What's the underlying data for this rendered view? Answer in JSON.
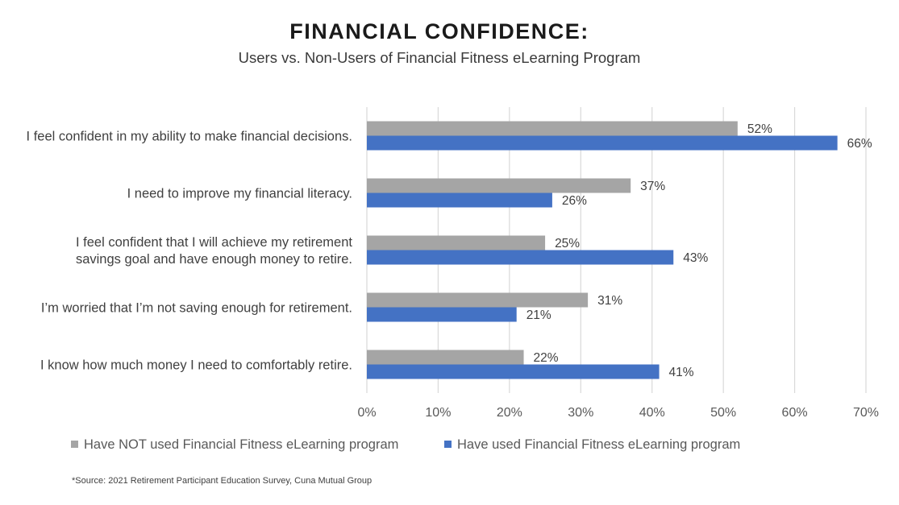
{
  "header": {
    "title": "FINANCIAL CONFIDENCE:",
    "subtitle": "Users vs. Non-Users of Financial Fitness eLearning Program"
  },
  "footnote": "*Source: 2021 Retirement Participant Education Survey, Cuna Mutual Group",
  "chart_data": {
    "type": "bar",
    "orientation": "horizontal",
    "title": "FINANCIAL CONFIDENCE:",
    "subtitle": "Users vs. Non-Users of Financial Fitness eLearning Program",
    "categories": [
      [
        "I feel confident in my ability to make financial decisions."
      ],
      [
        "I need to improve my financial literacy."
      ],
      [
        "I feel confident that I will achieve my retirement",
        "savings goal and have enough money to retire."
      ],
      [
        "I’m worried that I’m not saving enough for retirement."
      ],
      [
        "I know how much money I need to comfortably retire."
      ]
    ],
    "series": [
      {
        "name": "Have NOT used Financial Fitness eLearning program",
        "color": "#a5a5a5",
        "values": [
          52,
          37,
          25,
          31,
          22
        ],
        "labels": [
          "52%",
          "37%",
          "25%",
          "31%",
          "22%"
        ]
      },
      {
        "name": "Have used Financial Fitness eLearning program",
        "color": "#4472c4",
        "values": [
          66,
          26,
          43,
          21,
          41
        ],
        "labels": [
          "66%",
          "26%",
          "43%",
          "21%",
          "41%"
        ]
      }
    ],
    "xlim": [
      0,
      70
    ],
    "xticks": [
      "0%",
      "10%",
      "20%",
      "30%",
      "40%",
      "50%",
      "60%",
      "70%"
    ],
    "grid": true,
    "legend_position": "bottom",
    "gridline_color": "#d9d9d9"
  }
}
